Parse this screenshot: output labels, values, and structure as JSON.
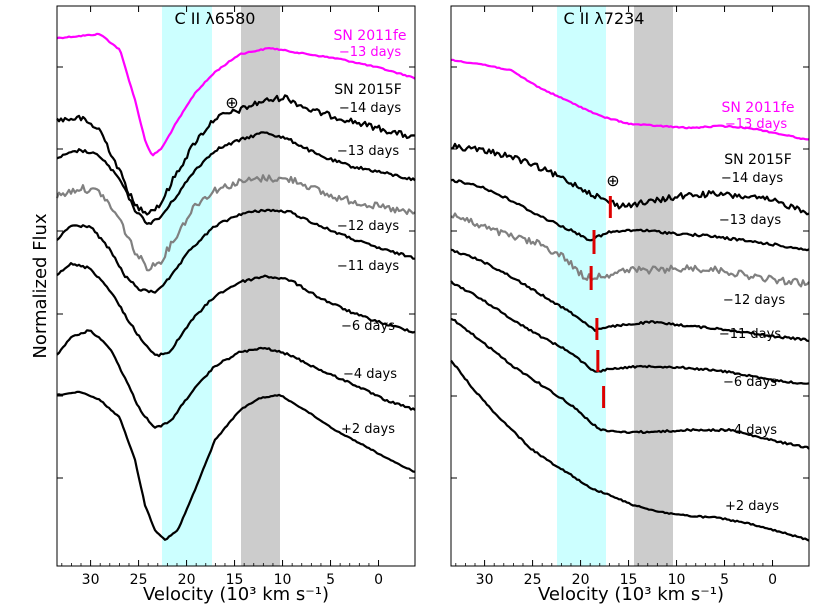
{
  "y_axis_label": "Normalized Flux",
  "colors": {
    "sn2011fe": "#ff00ff",
    "sn2015f": "#000000",
    "telluric_spectrum": "#808080",
    "cyan_band": "#ccffff",
    "gray_band": "#cccccc",
    "marker": "#dd0000"
  },
  "chart_data": [
    {
      "type": "line",
      "title": "C II λ6580",
      "xlabel": "Velocity (10³ km s⁻¹)",
      "ylabel": "Normalized Flux",
      "xlim": [
        33.5,
        -3.8
      ],
      "x_ticks": [
        30,
        25,
        20,
        15,
        10,
        5,
        0
      ],
      "shaded_regions": [
        {
          "range": [
            22.2,
            17.0
          ],
          "color": "cyan"
        },
        {
          "range": [
            14.2,
            10.2
          ],
          "color": "gray"
        }
      ],
      "annotations": [
        "⊕"
      ],
      "series": [
        {
          "name": "SN 2011fe",
          "label": "−13 days",
          "color": "#ff00ff"
        },
        {
          "name": "SN 2015F",
          "label": "−14 days"
        },
        {
          "label": "−13 days"
        },
        {
          "label": "−12 days",
          "color": "#808080"
        },
        {
          "label": "−11 days"
        },
        {
          "label": "−6 days"
        },
        {
          "label": "−4 days"
        },
        {
          "label": "+2 days"
        }
      ]
    },
    {
      "type": "line",
      "title": "C II λ7234",
      "xlabel": "Velocity (10³ km s⁻¹)",
      "xlim": [
        33.5,
        -3.8
      ],
      "x_ticks": [
        30,
        25,
        20,
        15,
        10,
        5,
        0
      ],
      "shaded_regions": [
        {
          "range": [
            22.2,
            17.0
          ],
          "color": "cyan"
        },
        {
          "range": [
            14.2,
            10.2
          ],
          "color": "gray"
        }
      ],
      "annotations": [
        "⊕"
      ],
      "markers_velocity": [
        16.9,
        18.6,
        18.9,
        18.3,
        18.2,
        17.6
      ],
      "series": [
        {
          "name": "SN 2011fe",
          "label": "−13 days",
          "color": "#ff00ff"
        },
        {
          "name": "SN 2015F",
          "label": "−14 days"
        },
        {
          "label": "−13 days"
        },
        {
          "label": "−12 days",
          "color": "#808080"
        },
        {
          "label": "−11 days"
        },
        {
          "label": "−6 days"
        },
        {
          "label": "−4 days"
        },
        {
          "label": "+2 days"
        }
      ]
    }
  ]
}
